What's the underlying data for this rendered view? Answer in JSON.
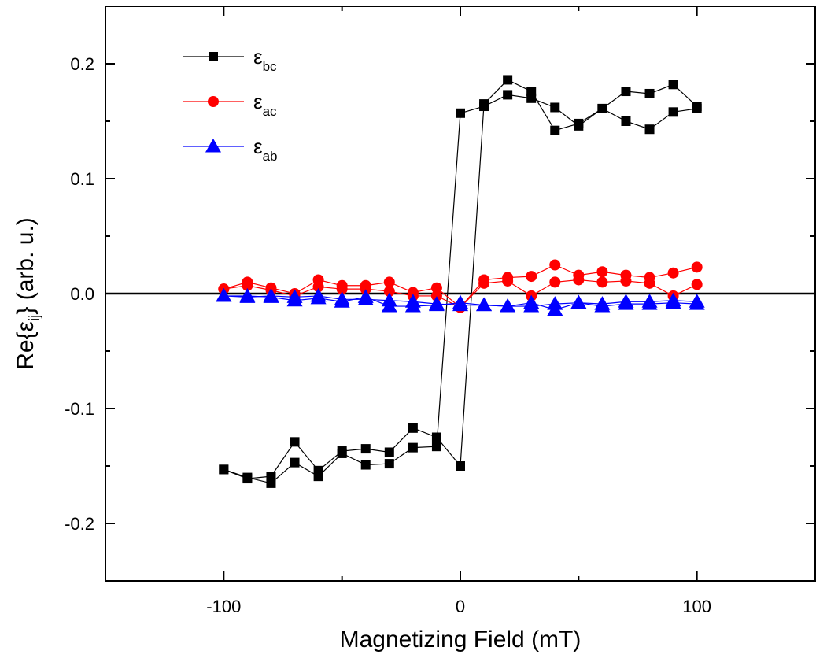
{
  "chart_data": {
    "type": "line",
    "xlabel": "Magnetizing Field (mT)",
    "ylabel": {
      "prefix": "Re{",
      "symbol": "ε",
      "sub": "ij",
      "suffix": "} (arb. u.)"
    },
    "xlim": [
      -150,
      150
    ],
    "ylim": [
      -0.25,
      0.25
    ],
    "xticks": [
      -100,
      0,
      100
    ],
    "xtick_labels": [
      "-100",
      "0",
      "100"
    ],
    "yticks": [
      -0.2,
      -0.1,
      0.0,
      0.1,
      0.2
    ],
    "ytick_labels": [
      "-0.2",
      "-0.1",
      "0.0",
      "0.1",
      "0.2"
    ],
    "zero_line": true,
    "grid": false,
    "legend_position": "top-left",
    "series": [
      {
        "name": "ε_bc",
        "symbol": "ε",
        "sub": "bc",
        "color": "#000000",
        "marker": "square",
        "branches": [
          {
            "x": [
              -100,
              -90,
              -80,
              -70,
              -60,
              -50,
              -40,
              -30,
              -20,
              -10,
              0,
              10,
              20,
              30,
              40,
              50,
              60,
              70,
              80,
              90,
              100
            ],
            "y": [
              -0.153,
              -0.161,
              -0.159,
              -0.129,
              -0.154,
              -0.137,
              -0.135,
              -0.138,
              -0.117,
              -0.125,
              -0.15,
              0.165,
              0.186,
              0.176,
              0.142,
              0.148,
              0.161,
              0.176,
              0.174,
              0.182,
              0.163
            ]
          },
          {
            "x": [
              -100,
              -90,
              -80,
              -70,
              -60,
              -50,
              -40,
              -30,
              -20,
              -10,
              0,
              10,
              20,
              30,
              40,
              50,
              60,
              70,
              80,
              90,
              100
            ],
            "y": [
              -0.153,
              -0.16,
              -0.165,
              -0.147,
              -0.159,
              -0.139,
              -0.149,
              -0.148,
              -0.134,
              -0.133,
              0.157,
              0.163,
              0.173,
              0.17,
              0.162,
              0.146,
              0.161,
              0.15,
              0.143,
              0.158,
              0.161
            ]
          }
        ]
      },
      {
        "name": "ε_ac",
        "symbol": "ε",
        "sub": "ac",
        "color": "#ff0000",
        "marker": "circle",
        "branches": [
          {
            "x": [
              -100,
              -90,
              -80,
              -70,
              -60,
              -50,
              -40,
              -30,
              -20,
              -10,
              0,
              10,
              20,
              30,
              40,
              50,
              60,
              70,
              80,
              90,
              100
            ],
            "y": [
              0.004,
              0.01,
              0.005,
              0.0,
              0.012,
              0.007,
              0.007,
              0.01,
              0.001,
              0.005,
              -0.012,
              0.012,
              0.014,
              0.015,
              0.025,
              0.016,
              0.019,
              0.016,
              0.014,
              0.018,
              0.023
            ]
          },
          {
            "x": [
              -100,
              -90,
              -80,
              -70,
              -60,
              -50,
              -40,
              -30,
              -20,
              -10,
              0,
              10,
              20,
              30,
              40,
              50,
              60,
              70,
              80,
              90,
              100
            ],
            "y": [
              0.004,
              0.007,
              0.003,
              -0.002,
              0.006,
              0.004,
              0.004,
              0.002,
              -0.002,
              -0.002,
              -0.012,
              0.009,
              0.011,
              -0.002,
              0.01,
              0.012,
              0.01,
              0.011,
              0.009,
              -0.002,
              0.008
            ]
          }
        ]
      },
      {
        "name": "ε_ab",
        "symbol": "ε",
        "sub": "ab",
        "color": "#0000ff",
        "marker": "triangle",
        "branches": [
          {
            "x": [
              -100,
              -90,
              -80,
              -70,
              -60,
              -50,
              -40,
              -30,
              -20,
              -10,
              0,
              10,
              20,
              30,
              40,
              50,
              60,
              70,
              80,
              90,
              100
            ],
            "y": [
              -0.002,
              -0.003,
              -0.002,
              -0.003,
              -0.002,
              -0.005,
              -0.005,
              -0.006,
              -0.007,
              -0.009,
              -0.01,
              -0.01,
              -0.011,
              -0.008,
              -0.014,
              -0.008,
              -0.009,
              -0.007,
              -0.007,
              -0.006,
              -0.007
            ]
          },
          {
            "x": [
              -100,
              -90,
              -80,
              -70,
              -60,
              -50,
              -40,
              -30,
              -20,
              -10,
              0,
              10,
              20,
              30,
              40,
              50,
              60,
              70,
              80,
              90,
              100
            ],
            "y": [
              -0.002,
              -0.002,
              -0.003,
              -0.006,
              -0.004,
              -0.007,
              -0.003,
              -0.011,
              -0.011,
              -0.01,
              -0.008,
              -0.01,
              -0.011,
              -0.011,
              -0.009,
              -0.008,
              -0.011,
              -0.009,
              -0.009,
              -0.008,
              -0.009
            ]
          }
        ]
      }
    ]
  }
}
